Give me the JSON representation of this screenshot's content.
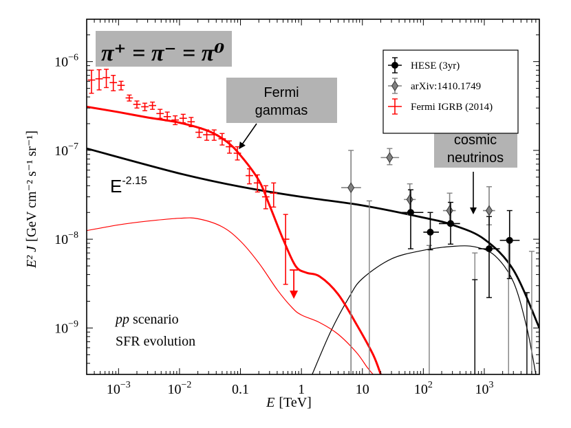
{
  "chart_data": {
    "type": "scatter",
    "xlabel": "[TeV]",
    "xlabel_var": "E",
    "ylabel": "[GeV cm⁻² s⁻¹ sr⁻¹]",
    "ylabel_var": "E² J",
    "xscale": "log",
    "yscale": "log",
    "xlim": [
      0.0003,
      8000
    ],
    "ylim": [
      3e-10,
      3e-06
    ],
    "x_ticks": [
      {
        "value": 0.001,
        "label": "10",
        "exp": "−3"
      },
      {
        "value": 0.01,
        "label": "10",
        "exp": "−2"
      },
      {
        "value": 0.1,
        "label": "0.1",
        "exp": ""
      },
      {
        "value": 1,
        "label": "1",
        "exp": ""
      },
      {
        "value": 10,
        "label": "10",
        "exp": ""
      },
      {
        "value": 100,
        "label": "10",
        "exp": "2"
      },
      {
        "value": 1000,
        "label": "10",
        "exp": "3"
      }
    ],
    "y_ticks": [
      {
        "value": 1e-09,
        "label": "10",
        "exp": "−9"
      },
      {
        "value": 1e-08,
        "label": "10",
        "exp": "−8"
      },
      {
        "value": 1e-07,
        "label": "10",
        "exp": "−7"
      },
      {
        "value": 1e-06,
        "label": "10",
        "exp": "−6"
      }
    ],
    "legend": {
      "position": "top-right",
      "entries": [
        {
          "label": "HESE (3yr)",
          "color": "#000000",
          "marker": "circle"
        },
        {
          "label": "arXiv:1410.1749",
          "color": "#808080",
          "marker": "diamond"
        },
        {
          "label": "Fermi IGRB (2014)",
          "color": "#ff0000",
          "marker": "none"
        }
      ]
    },
    "annotations": {
      "title_box": "π⁺ = π⁻ = π⁰",
      "fermi_gammas": [
        "Fermi",
        "gammas"
      ],
      "cosmic_neutrinos": [
        "cosmic",
        "neutrinos"
      ],
      "power_law_base": "E",
      "power_law_exp": "-2.15",
      "scenario_prefix": "pp",
      "scenario_suffix": " scenario",
      "evolution": "SFR evolution"
    },
    "curves": [
      {
        "name": "power-law",
        "color": "#000000",
        "width": 2.8,
        "points": [
          [
            0.0003,
            1.05e-07
          ],
          [
            0.01,
            5.5e-08
          ],
          [
            0.1,
            3.9e-08
          ],
          [
            1,
            3e-08
          ],
          [
            10,
            2.4e-08
          ],
          [
            100,
            1.75e-08
          ],
          [
            300,
            1.45e-08
          ],
          [
            1000,
            1e-08
          ],
          [
            3000,
            4.5e-09
          ],
          [
            8000,
            1e-09
          ]
        ]
      },
      {
        "name": "neutrino-component",
        "color": "#000000",
        "width": 1.2,
        "points": [
          [
            1.5,
            3e-10
          ],
          [
            3,
            9e-10
          ],
          [
            6,
            2.2e-09
          ],
          [
            10,
            3.6e-09
          ],
          [
            30,
            6e-09
          ],
          [
            100,
            7.5e-09
          ],
          [
            300,
            8.3e-09
          ],
          [
            700,
            8.2e-09
          ],
          [
            1500,
            6.5e-09
          ],
          [
            3000,
            3.3e-09
          ],
          [
            5000,
            1e-09
          ],
          [
            7000,
            3e-10
          ]
        ]
      },
      {
        "name": "gamma-total",
        "color": "#ff0000",
        "width": 3.0,
        "points": [
          [
            0.0003,
            3.1e-07
          ],
          [
            0.001,
            2.7e-07
          ],
          [
            0.003,
            2.35e-07
          ],
          [
            0.01,
            2.05e-07
          ],
          [
            0.03,
            1.65e-07
          ],
          [
            0.06,
            1.25e-07
          ],
          [
            0.1,
            8.8e-08
          ],
          [
            0.2,
            4.6e-08
          ],
          [
            0.3,
            2.4e-08
          ],
          [
            0.5,
            1e-08
          ],
          [
            0.8,
            5e-09
          ],
          [
            1.2,
            4.2e-09
          ],
          [
            2,
            3.8e-09
          ],
          [
            4,
            2.4e-09
          ],
          [
            8,
            1.1e-09
          ],
          [
            15,
            5e-10
          ],
          [
            20,
            3e-10
          ]
        ]
      },
      {
        "name": "gamma-component",
        "color": "#ff0000",
        "width": 1.2,
        "points": [
          [
            0.0003,
            1.25e-08
          ],
          [
            0.001,
            1.45e-08
          ],
          [
            0.003,
            1.6e-08
          ],
          [
            0.01,
            1.72e-08
          ],
          [
            0.02,
            1.7e-08
          ],
          [
            0.05,
            1.38e-08
          ],
          [
            0.1,
            9.5e-09
          ],
          [
            0.2,
            5.4e-09
          ],
          [
            0.4,
            2.7e-09
          ],
          [
            0.7,
            1.7e-09
          ],
          [
            1,
            1.4e-09
          ],
          [
            2,
            1.15e-09
          ],
          [
            4,
            8.5e-10
          ],
          [
            8,
            5.3e-10
          ],
          [
            12,
            3.6e-10
          ],
          [
            15,
            3e-10
          ]
        ]
      }
    ],
    "series": [
      {
        "name": "Fermi IGRB (2014)",
        "color": "#ff0000",
        "points": [
          {
            "x": 0.00036,
            "y": 6.2e-07,
            "ylo": 4.4e-07,
            "yhi": 8e-07
          },
          {
            "x": 0.00048,
            "y": 6.4e-07,
            "ylo": 4.8e-07,
            "yhi": 8.1e-07
          },
          {
            "x": 0.00063,
            "y": 6.6e-07,
            "ylo": 5.1e-07,
            "yhi": 8.2e-07
          },
          {
            "x": 0.00082,
            "y": 5.8e-07,
            "ylo": 4.7e-07,
            "yhi": 7e-07
          },
          {
            "x": 0.0011,
            "y": 5.4e-07,
            "ylo": 4.8e-07,
            "yhi": 6e-07
          },
          {
            "x": 0.0015,
            "y": 3.9e-07,
            "ylo": 3.6e-07,
            "yhi": 4.2e-07
          },
          {
            "x": 0.002,
            "y": 3.3e-07,
            "ylo": 3e-07,
            "yhi": 3.6e-07
          },
          {
            "x": 0.0027,
            "y": 3.1e-07,
            "ylo": 2.8e-07,
            "yhi": 3.4e-07
          },
          {
            "x": 0.0036,
            "y": 3.2e-07,
            "ylo": 2.9e-07,
            "yhi": 3.5e-07
          },
          {
            "x": 0.0048,
            "y": 2.6e-07,
            "ylo": 2.3e-07,
            "yhi": 2.9e-07
          },
          {
            "x": 0.0063,
            "y": 2.4e-07,
            "ylo": 2.15e-07,
            "yhi": 2.7e-07
          },
          {
            "x": 0.0085,
            "y": 2.2e-07,
            "ylo": 1.95e-07,
            "yhi": 2.45e-07
          },
          {
            "x": 0.0115,
            "y": 2.3e-07,
            "ylo": 2.05e-07,
            "yhi": 2.55e-07
          },
          {
            "x": 0.0155,
            "y": 2.1e-07,
            "ylo": 1.85e-07,
            "yhi": 2.35e-07
          },
          {
            "x": 0.021,
            "y": 1.6e-07,
            "ylo": 1.4e-07,
            "yhi": 1.8e-07
          },
          {
            "x": 0.028,
            "y": 1.5e-07,
            "ylo": 1.3e-07,
            "yhi": 1.7e-07
          },
          {
            "x": 0.037,
            "y": 1.5e-07,
            "ylo": 1.3e-07,
            "yhi": 1.7e-07
          },
          {
            "x": 0.05,
            "y": 1.35e-07,
            "ylo": 1.15e-07,
            "yhi": 1.55e-07
          },
          {
            "x": 0.066,
            "y": 1.1e-07,
            "ylo": 9.3e-08,
            "yhi": 1.28e-07
          },
          {
            "x": 0.089,
            "y": 9.3e-08,
            "ylo": 7.8e-08,
            "yhi": 1.1e-07
          },
          {
            "x": 0.14,
            "y": 5.2e-08,
            "ylo": 4.2e-08,
            "yhi": 6.2e-08
          },
          {
            "x": 0.19,
            "y": 4.3e-08,
            "ylo": 3.4e-08,
            "yhi": 5.3e-08
          },
          {
            "x": 0.26,
            "y": 3e-08,
            "ylo": 2.2e-08,
            "yhi": 4e-08
          },
          {
            "x": 0.35,
            "y": 3.3e-08,
            "ylo": 2.3e-08,
            "yhi": 4.3e-08
          },
          {
            "x": 0.55,
            "y": 1e-08,
            "ylo": 3.1e-09,
            "yhi": 1.9e-08
          }
        ],
        "upper_limit": {
          "x": 0.75,
          "y": 4.5e-09
        }
      },
      {
        "name": "arXiv:1410.1749",
        "color": "#808080",
        "points": [
          {
            "x": 6.5,
            "y": 3.8e-08,
            "ylo": 3e-10,
            "yhi": 1e-07,
            "xlo": 4.5,
            "xhi": 9.5
          },
          {
            "x": 28,
            "y": 8.3e-08,
            "ylo": 6.9e-08,
            "yhi": 1.05e-07,
            "xlo": 20,
            "xhi": 40
          },
          {
            "x": 60,
            "y": 2.8e-08,
            "ylo": 1.9e-08,
            "yhi": 4.2e-08,
            "xlo": 48,
            "xhi": 75
          },
          {
            "x": 270,
            "y": 2.1e-08,
            "ylo": 1.45e-08,
            "yhi": 3.3e-08,
            "xlo": 210,
            "xhi": 340
          },
          {
            "x": 1200,
            "y": 2.1e-08,
            "ylo": 1.45e-08,
            "yhi": 3.9e-08,
            "xlo": 950,
            "xhi": 1500
          }
        ],
        "limits": [
          [
            13,
            2.7e-08
          ],
          [
            125,
            8.5e-09
          ],
          [
            700,
            7e-09
          ],
          [
            2500,
            1e-08
          ],
          [
            6000,
            7.3e-09
          ]
        ]
      },
      {
        "name": "HESE (3yr)",
        "color": "#000000",
        "points": [
          {
            "x": 62,
            "y": 2e-08,
            "ylo": 7.8e-09,
            "yhi": 3.6e-08,
            "xlo": 40,
            "xhi": 100
          },
          {
            "x": 130,
            "y": 1.2e-08,
            "ylo": 7.6e-09,
            "yhi": 2e-08,
            "xlo": 100,
            "xhi": 180
          },
          {
            "x": 280,
            "y": 1.5e-08,
            "ylo": 8.8e-09,
            "yhi": 2.6e-08,
            "xlo": 180,
            "xhi": 400
          },
          {
            "x": 1200,
            "y": 7.8e-09,
            "ylo": 2.2e-09,
            "yhi": 1.8e-08,
            "xlo": 800,
            "xhi": 1800
          },
          {
            "x": 2600,
            "y": 9.7e-09,
            "ylo": 3.6e-09,
            "yhi": 2.1e-08,
            "xlo": 1800,
            "xhi": 3800
          }
        ],
        "limits": [
          [
            700,
            3.5e-09
          ],
          [
            5000,
            2.5e-09
          ]
        ]
      }
    ]
  }
}
